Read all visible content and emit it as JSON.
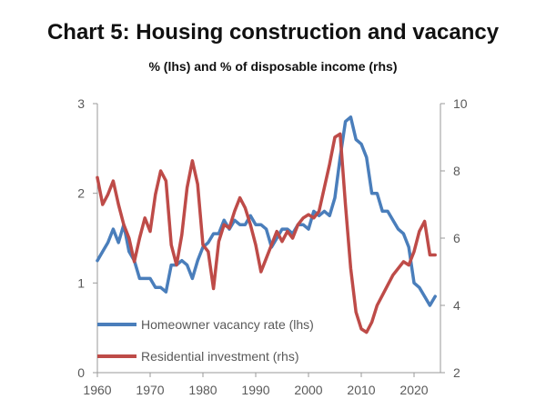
{
  "header": {
    "title": "Chart 5: Housing construction and vacancy",
    "subtitle": "% (lhs) and % of disposable income (rhs)"
  },
  "chart_data": {
    "type": "line",
    "title": "Chart 5: Housing construction and vacancy",
    "subtitle": "% (lhs) and % of disposable income (rhs)",
    "xlim": [
      1960,
      2025
    ],
    "x_ticks": [
      1960,
      1970,
      1980,
      1990,
      2000,
      2010,
      2020
    ],
    "y_left": {
      "lim": [
        0,
        3
      ],
      "ticks": [
        0,
        1,
        2,
        3
      ]
    },
    "y_right": {
      "lim": [
        2,
        10
      ],
      "ticks": [
        2,
        4,
        6,
        8,
        10
      ]
    },
    "grid": false,
    "legend": "bottom-left",
    "series": [
      {
        "name": "Homeowner vacancy rate (lhs)",
        "axis": "left",
        "color": "#4A7EBB",
        "x": [
          1960,
          1961,
          1962,
          1963,
          1964,
          1965,
          1966,
          1967,
          1968,
          1969,
          1970,
          1971,
          1972,
          1973,
          1974,
          1975,
          1976,
          1977,
          1978,
          1979,
          1980,
          1981,
          1982,
          1983,
          1984,
          1985,
          1986,
          1987,
          1988,
          1989,
          1990,
          1991,
          1992,
          1993,
          1994,
          1995,
          1996,
          1997,
          1998,
          1999,
          2000,
          2001,
          2002,
          2003,
          2004,
          2005,
          2006,
          2007,
          2008,
          2009,
          2010,
          2011,
          2012,
          2013,
          2014,
          2015,
          2016,
          2017,
          2018,
          2019,
          2020,
          2021,
          2022,
          2023,
          2024
        ],
        "values": [
          1.25,
          1.35,
          1.45,
          1.6,
          1.45,
          1.65,
          1.35,
          1.25,
          1.05,
          1.05,
          1.05,
          0.95,
          0.95,
          0.9,
          1.2,
          1.2,
          1.25,
          1.2,
          1.05,
          1.25,
          1.4,
          1.45,
          1.55,
          1.55,
          1.7,
          1.6,
          1.7,
          1.65,
          1.65,
          1.75,
          1.65,
          1.65,
          1.6,
          1.4,
          1.5,
          1.6,
          1.6,
          1.55,
          1.65,
          1.65,
          1.6,
          1.8,
          1.75,
          1.8,
          1.75,
          1.95,
          2.4,
          2.8,
          2.85,
          2.6,
          2.55,
          2.4,
          2.0,
          2.0,
          1.8,
          1.8,
          1.7,
          1.6,
          1.55,
          1.4,
          1.0,
          0.95,
          0.85,
          0.75,
          0.85
        ]
      },
      {
        "name": "Residential investment (rhs)",
        "axis": "right",
        "color": "#BE4B48",
        "x": [
          1960,
          1961,
          1962,
          1963,
          1964,
          1965,
          1966,
          1967,
          1968,
          1969,
          1970,
          1971,
          1972,
          1973,
          1974,
          1975,
          1976,
          1977,
          1978,
          1979,
          1980,
          1981,
          1982,
          1983,
          1984,
          1985,
          1986,
          1987,
          1988,
          1989,
          1990,
          1991,
          1992,
          1993,
          1994,
          1995,
          1996,
          1997,
          1998,
          1999,
          2000,
          2001,
          2002,
          2003,
          2004,
          2005,
          2006,
          2007,
          2008,
          2009,
          2010,
          2011,
          2012,
          2013,
          2014,
          2015,
          2016,
          2017,
          2018,
          2019,
          2020,
          2021,
          2022,
          2023,
          2024
        ],
        "values": [
          7.8,
          7.0,
          7.3,
          7.7,
          7.0,
          6.4,
          6.0,
          5.3,
          6.0,
          6.6,
          6.2,
          7.3,
          8.0,
          7.7,
          5.8,
          5.2,
          6.1,
          7.5,
          8.3,
          7.6,
          5.8,
          5.6,
          4.5,
          5.9,
          6.4,
          6.3,
          6.8,
          7.2,
          6.9,
          6.4,
          5.8,
          5.0,
          5.4,
          5.8,
          6.2,
          5.9,
          6.2,
          6.0,
          6.4,
          6.6,
          6.7,
          6.6,
          6.8,
          7.5,
          8.2,
          9.0,
          9.1,
          7.0,
          5.1,
          3.8,
          3.3,
          3.2,
          3.5,
          4.0,
          4.3,
          4.6,
          4.9,
          5.1,
          5.3,
          5.2,
          5.6,
          6.2,
          6.5,
          5.5,
          5.5
        ]
      }
    ]
  }
}
